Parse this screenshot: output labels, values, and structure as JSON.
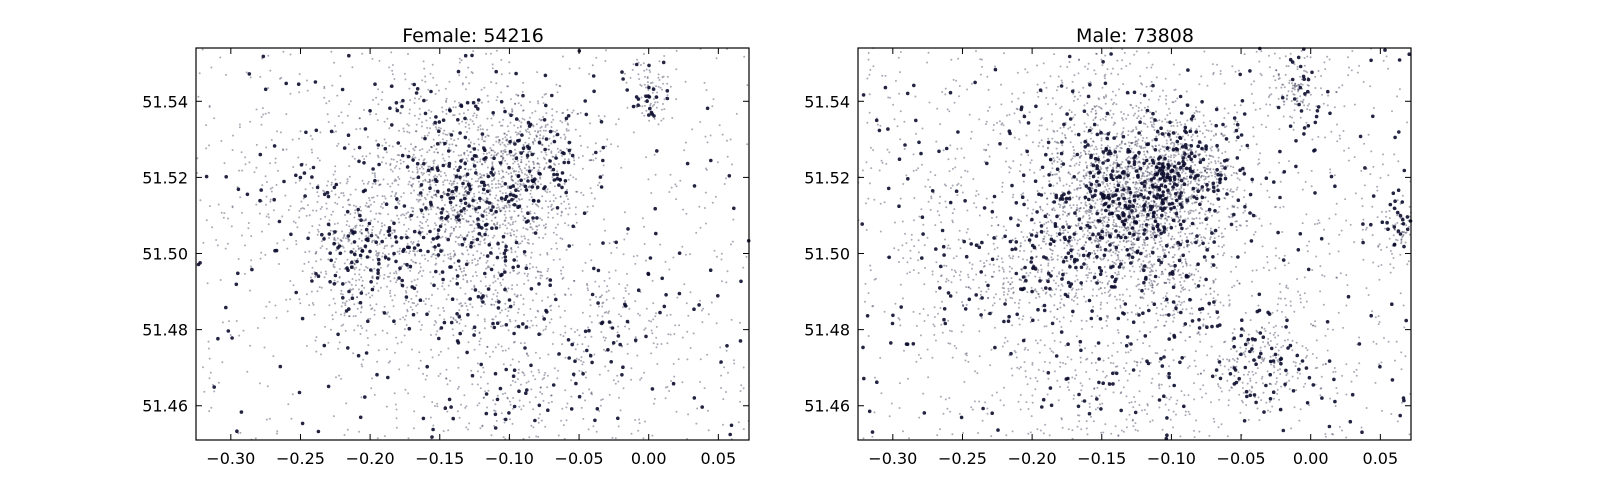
{
  "chart_data": [
    {
      "type": "scatter",
      "title": "Female: 54216",
      "xlabel": "",
      "ylabel": "",
      "xlim": [
        -0.325,
        0.072
      ],
      "ylim": [
        51.451,
        51.554
      ],
      "xticks": [
        -0.3,
        -0.25,
        -0.2,
        -0.15,
        -0.1,
        -0.05,
        0.0,
        0.05
      ],
      "xtick_labels": [
        "−0.30",
        "−0.25",
        "−0.20",
        "−0.15",
        "−0.10",
        "−0.05",
        "0.00",
        "0.05"
      ],
      "yticks": [
        51.46,
        51.48,
        51.5,
        51.52,
        51.54
      ],
      "ytick_labels": [
        "51.46",
        "51.48",
        "51.50",
        "51.52",
        "51.54"
      ],
      "grid": false,
      "point_color": "#0b0b2e",
      "point_count": 54216,
      "density_centers": [
        {
          "x": -0.13,
          "y": 51.514,
          "weight": 0.3,
          "sx": 0.035,
          "sy": 0.011
        },
        {
          "x": -0.08,
          "y": 51.525,
          "weight": 0.08,
          "sx": 0.018,
          "sy": 0.007
        },
        {
          "x": -0.195,
          "y": 51.492,
          "weight": 0.07,
          "sx": 0.025,
          "sy": 0.009
        },
        {
          "x": -0.21,
          "y": 51.505,
          "weight": 0.05,
          "sx": 0.015,
          "sy": 0.007
        },
        {
          "x": -0.11,
          "y": 51.49,
          "weight": 0.06,
          "sx": 0.03,
          "sy": 0.01
        },
        {
          "x": -0.02,
          "y": 51.482,
          "weight": 0.04,
          "sx": 0.025,
          "sy": 0.008
        },
        {
          "x": 0.0,
          "y": 51.543,
          "weight": 0.02,
          "sx": 0.008,
          "sy": 0.004
        },
        {
          "x": -0.14,
          "y": 51.535,
          "weight": 0.05,
          "sx": 0.04,
          "sy": 0.01
        },
        {
          "x": -0.095,
          "y": 51.465,
          "weight": 0.04,
          "sx": 0.04,
          "sy": 0.008
        },
        {
          "x": -0.25,
          "y": 51.52,
          "weight": 0.03,
          "sx": 0.03,
          "sy": 0.015
        }
      ]
    },
    {
      "type": "scatter",
      "title": "Male: 73808",
      "xlabel": "",
      "ylabel": "",
      "xlim": [
        -0.325,
        0.072
      ],
      "ylim": [
        51.451,
        51.554
      ],
      "xticks": [
        -0.3,
        -0.25,
        -0.2,
        -0.15,
        -0.1,
        -0.05,
        0.0,
        0.05
      ],
      "xtick_labels": [
        "−0.30",
        "−0.25",
        "−0.20",
        "−0.15",
        "−0.10",
        "−0.05",
        "0.00",
        "0.05"
      ],
      "yticks": [
        51.46,
        51.48,
        51.5,
        51.52,
        51.54
      ],
      "ytick_labels": [
        "51.46",
        "51.48",
        "51.50",
        "51.52",
        "51.54"
      ],
      "grid": false,
      "point_color": "#0b0b2e",
      "point_count": 73808,
      "density_centers": [
        {
          "x": -0.128,
          "y": 51.514,
          "weight": 0.34,
          "sx": 0.032,
          "sy": 0.01
        },
        {
          "x": -0.09,
          "y": 51.522,
          "weight": 0.08,
          "sx": 0.02,
          "sy": 0.007
        },
        {
          "x": -0.19,
          "y": 51.495,
          "weight": 0.06,
          "sx": 0.025,
          "sy": 0.009
        },
        {
          "x": -0.1,
          "y": 51.492,
          "weight": 0.06,
          "sx": 0.03,
          "sy": 0.01
        },
        {
          "x": -0.03,
          "y": 51.472,
          "weight": 0.04,
          "sx": 0.02,
          "sy": 0.008
        },
        {
          "x": -0.01,
          "y": 51.543,
          "weight": 0.02,
          "sx": 0.008,
          "sy": 0.004
        },
        {
          "x": 0.065,
          "y": 51.507,
          "weight": 0.02,
          "sx": 0.008,
          "sy": 0.004
        },
        {
          "x": -0.15,
          "y": 51.535,
          "weight": 0.05,
          "sx": 0.04,
          "sy": 0.01
        },
        {
          "x": -0.13,
          "y": 51.465,
          "weight": 0.04,
          "sx": 0.04,
          "sy": 0.008
        },
        {
          "x": -0.25,
          "y": 51.5,
          "weight": 0.03,
          "sx": 0.03,
          "sy": 0.015
        }
      ]
    }
  ]
}
